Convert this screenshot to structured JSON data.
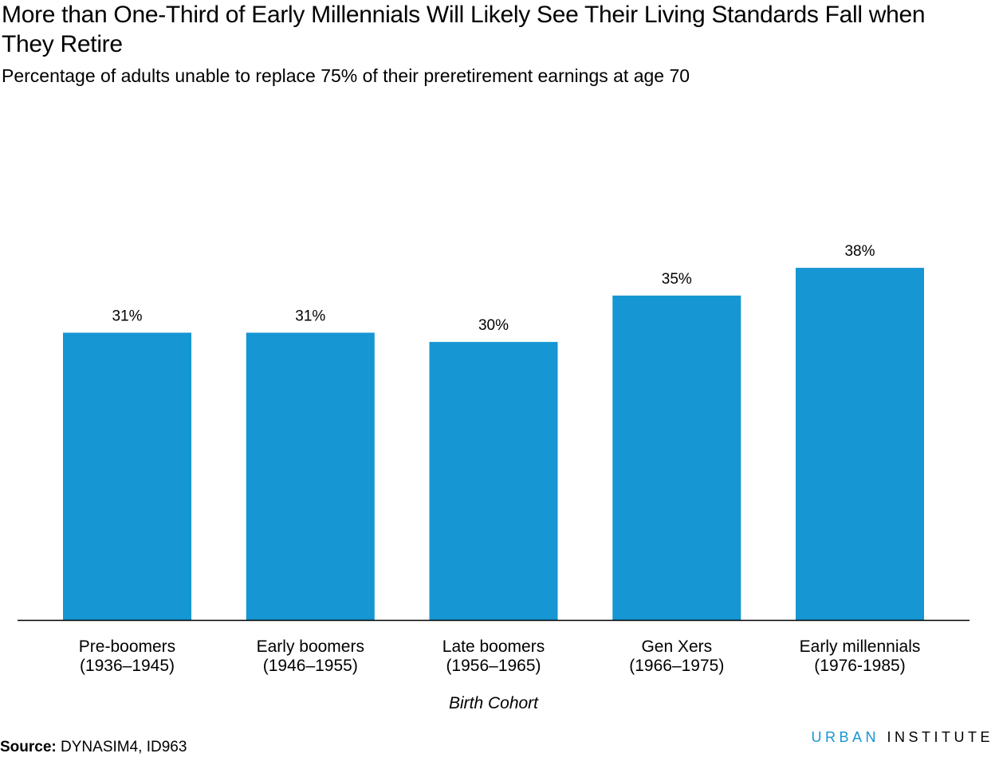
{
  "chart_data": {
    "type": "bar",
    "title": "More than One-Third of Early Millennials Will Likely See Their Living Standards Fall when They Retire",
    "subtitle": "Percentage of adults unable to replace 75% of their preretirement earnings at age 70",
    "xlabel": "Birth Cohort",
    "ylabel": "",
    "categories": [
      [
        "Pre-boomers",
        "(1936–1945)"
      ],
      [
        "Early boomers",
        "(1946–1955)"
      ],
      [
        "Late boomers",
        "(1956–1965)"
      ],
      [
        "Gen Xers",
        "(1966–1975)"
      ],
      [
        "Early millennials",
        "(1976-1985)"
      ]
    ],
    "values": [
      31,
      31,
      30,
      35,
      38
    ],
    "value_labels": [
      "31%",
      "31%",
      "30%",
      "35%",
      "38%"
    ],
    "ylim": [
      0,
      50
    ],
    "grid": false,
    "bar_color": "#1696d2"
  },
  "source": {
    "label": "Source:",
    "text": "DYNASIM4, ID963"
  },
  "brand": {
    "part1": "URBAN",
    "part2": "INSTITUTE",
    "accent_color": "#1696d2"
  }
}
